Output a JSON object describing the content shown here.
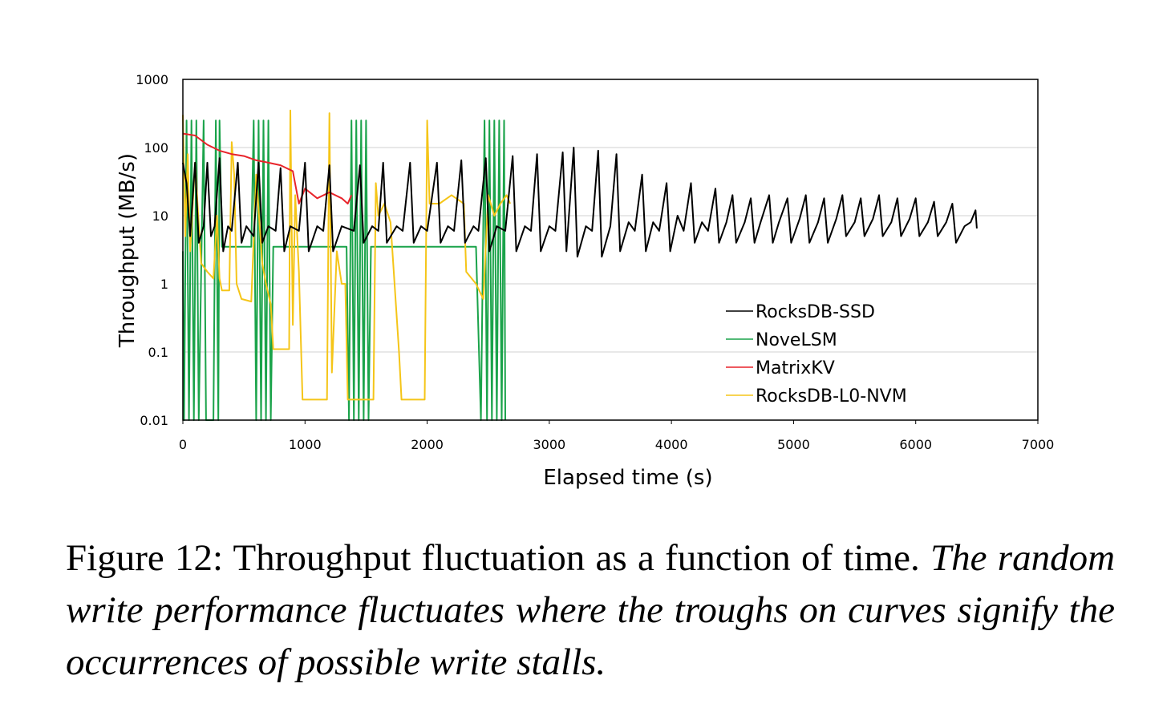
{
  "chart_data": {
    "type": "line",
    "x_label": "Elapsed time (s)",
    "y_label": "Throughput (MB/s)",
    "xlim": [
      0,
      7000
    ],
    "xticks": [
      0,
      1000,
      2000,
      3000,
      4000,
      5000,
      6000,
      7000
    ],
    "ylim": [
      0.01,
      1000
    ],
    "yticks": [
      1000,
      100,
      10,
      1,
      0.1,
      0.01
    ],
    "yscale": "log",
    "grid": "y",
    "legend": "lower right",
    "series": [
      {
        "name": "RocksDB-SSD",
        "color": "#000000",
        "x": [
          0,
          30,
          60,
          100,
          130,
          170,
          200,
          230,
          260,
          300,
          330,
          370,
          400,
          450,
          480,
          520,
          580,
          620,
          650,
          700,
          760,
          800,
          830,
          880,
          950,
          1000,
          1030,
          1100,
          1150,
          1200,
          1230,
          1300,
          1400,
          1450,
          1480,
          1550,
          1600,
          1640,
          1670,
          1750,
          1800,
          1860,
          1890,
          1950,
          2000,
          2080,
          2110,
          2170,
          2220,
          2280,
          2310,
          2380,
          2420,
          2480,
          2510,
          2570,
          2640,
          2700,
          2730,
          2800,
          2850,
          2900,
          2930,
          3000,
          3050,
          3110,
          3140,
          3200,
          3230,
          3300,
          3350,
          3400,
          3430,
          3500,
          3550,
          3580,
          3650,
          3700,
          3760,
          3790,
          3850,
          3900,
          3960,
          3990,
          4050,
          4100,
          4160,
          4190,
          4250,
          4300,
          4360,
          4390,
          4450,
          4500,
          4530,
          4600,
          4650,
          4680,
          4730,
          4800,
          4830,
          4880,
          4950,
          4980,
          5050,
          5100,
          5130,
          5200,
          5250,
          5280,
          5350,
          5400,
          5430,
          5500,
          5550,
          5580,
          5650,
          5700,
          5730,
          5800,
          5850,
          5880,
          5950,
          6000,
          6030,
          6100,
          6150,
          6180,
          6250,
          6300,
          6330,
          6400,
          6450,
          6490,
          6500
        ],
        "values": [
          60,
          30,
          5,
          60,
          4,
          7,
          60,
          5,
          7,
          70,
          3,
          7,
          6,
          60,
          4,
          7,
          5,
          60,
          4,
          7,
          6,
          50,
          3,
          7,
          6,
          60,
          3,
          7,
          6,
          55,
          3,
          7,
          6,
          55,
          4,
          7,
          6,
          60,
          4,
          7,
          6,
          60,
          4,
          7,
          6,
          60,
          4,
          7,
          6,
          65,
          4,
          7,
          6,
          70,
          3,
          7,
          6,
          75,
          3,
          7,
          6,
          80,
          3,
          7,
          6,
          85,
          3,
          100,
          2.5,
          7,
          6,
          90,
          2.5,
          7,
          80,
          3,
          8,
          6,
          40,
          3,
          8,
          6,
          30,
          3,
          10,
          6,
          30,
          4,
          8,
          6,
          25,
          4,
          8,
          20,
          4,
          8,
          18,
          4,
          8,
          20,
          4,
          8,
          18,
          4,
          9,
          20,
          4,
          8,
          18,
          4,
          9,
          20,
          5,
          8,
          18,
          5,
          9,
          20,
          5,
          8,
          18,
          5,
          9,
          18,
          5,
          8,
          16,
          5,
          8,
          15,
          4,
          7,
          8,
          12,
          6.5
        ]
      },
      {
        "name": "NoveLSM",
        "color": "#1aa34a",
        "x": [
          0,
          10,
          30,
          50,
          70,
          90,
          110,
          130,
          170,
          190,
          250,
          270,
          290,
          300,
          320,
          560,
          580,
          600,
          620,
          640,
          660,
          680,
          700,
          720,
          740,
          1340,
          1360,
          1380,
          1400,
          1420,
          1440,
          1460,
          1480,
          1500,
          1520,
          1540,
          2400,
          2440,
          2470,
          2490,
          2510,
          2530,
          2550,
          2570,
          2590,
          2610,
          2630,
          2640
        ],
        "values": [
          3,
          0.01,
          250,
          0.01,
          250,
          0.01,
          250,
          0.01,
          250,
          0.01,
          0.01,
          250,
          0.01,
          250,
          3.5,
          3.5,
          250,
          0.01,
          250,
          0.01,
          250,
          0.01,
          250,
          0.01,
          3.5,
          3.5,
          0.01,
          250,
          0.01,
          250,
          0.01,
          250,
          0.01,
          250,
          0.01,
          3.5,
          3.5,
          0.01,
          250,
          0.01,
          250,
          0.01,
          250,
          0.01,
          250,
          0.01,
          250,
          0.01
        ]
      },
      {
        "name": "MatrixKV",
        "color": "#e8232a",
        "x": [
          0,
          100,
          200,
          300,
          400,
          500,
          600,
          700,
          800,
          900,
          950,
          1000,
          1100,
          1200,
          1300,
          1350,
          1380
        ],
        "values": [
          160,
          150,
          110,
          90,
          80,
          75,
          65,
          60,
          55,
          45,
          15,
          25,
          18,
          22,
          18,
          15,
          20
        ]
      },
      {
        "name": "RocksDB-L0-NVM",
        "color": "#f5c518",
        "x": [
          0,
          20,
          40,
          60,
          100,
          150,
          200,
          250,
          280,
          300,
          320,
          380,
          400,
          420,
          440,
          480,
          560,
          600,
          650,
          680,
          720,
          740,
          870,
          880,
          900,
          920,
          950,
          980,
          1180,
          1200,
          1220,
          1260,
          1300,
          1330,
          1350,
          1560,
          1580,
          1600,
          1650,
          1700,
          1770,
          1790,
          1980,
          2000,
          2020,
          2100,
          2200,
          2300,
          2320,
          2400,
          2460,
          2500,
          2550,
          2600,
          2650,
          2680
        ],
        "values": [
          300,
          5,
          80,
          3,
          60,
          2,
          1.5,
          1.2,
          10,
          1.2,
          0.8,
          0.8,
          120,
          40,
          1,
          0.6,
          0.55,
          40,
          2,
          1,
          0.5,
          0.11,
          0.11,
          350,
          0.25,
          20,
          1.5,
          0.02,
          0.02,
          320,
          0.05,
          3,
          1,
          1,
          0.02,
          0.02,
          30,
          10,
          15,
          8,
          0.1,
          0.02,
          0.02,
          250,
          15,
          15,
          20,
          15,
          1.5,
          1,
          0.6,
          20,
          10,
          15,
          20,
          15
        ]
      }
    ]
  },
  "caption": {
    "label": "Figure 12: Throughput fluctuation as a function of time.",
    "text": "The random write performance fluctuates where the troughs on curves signify the occurrences of possible write stalls."
  }
}
